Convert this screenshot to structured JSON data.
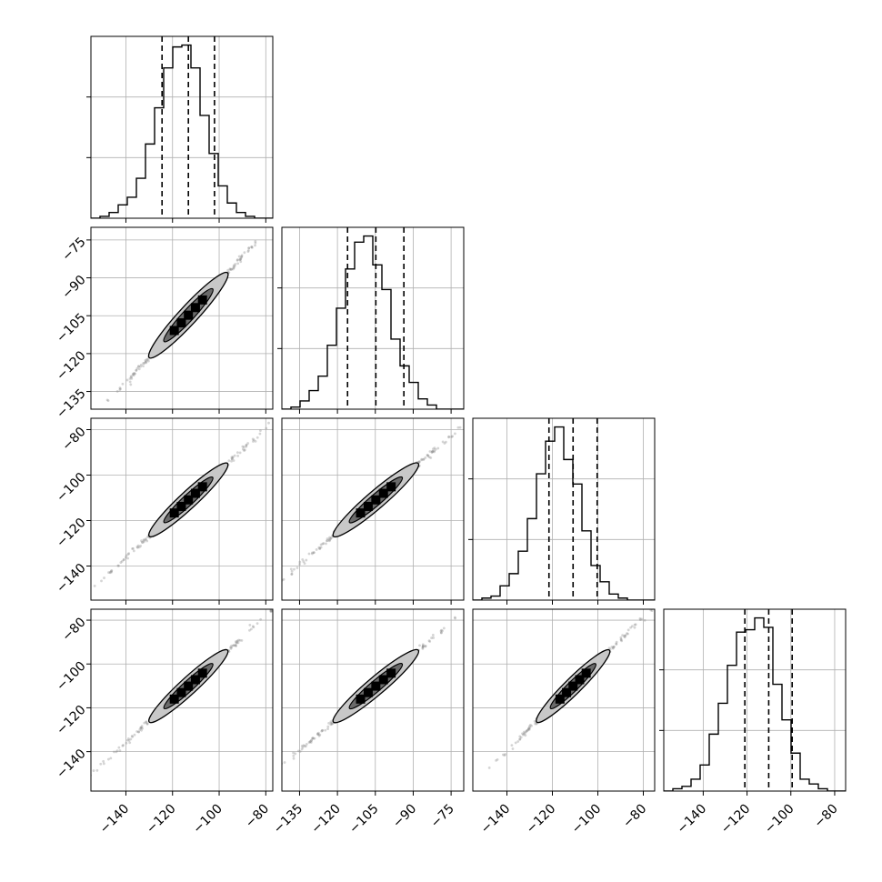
{
  "chart_data": {
    "type": "corner",
    "title": "",
    "grid": true,
    "parameter_labels": [
      "",
      "",
      "",
      ""
    ],
    "ranges": [
      [
        -155,
        -77
      ],
      [
        -142,
        -70
      ],
      [
        -155,
        -75
      ],
      [
        -158,
        -75
      ]
    ],
    "ticks": [
      [
        -140,
        -120,
        -100,
        -80
      ],
      [
        -135,
        -120,
        -105,
        -90,
        -75
      ],
      [
        -140,
        -120,
        -100,
        -80
      ],
      [
        -140,
        -120,
        -100,
        -80
      ]
    ],
    "quantiles": [
      [
        -124.5,
        -113.2,
        -102.0
      ],
      [
        -116.0,
        -104.8,
        -93.7
      ],
      [
        -121.5,
        -110.9,
        -100.3
      ],
      [
        -121.0,
        -110.1,
        -99.4
      ]
    ],
    "histograms": [
      {
        "bin_start": -155,
        "bin_width": 3.9,
        "counts": [
          0,
          1,
          3,
          7,
          11,
          21,
          39,
          58,
          79,
          90,
          91,
          79,
          54,
          34,
          17,
          8,
          3,
          1,
          0,
          0
        ]
      },
      {
        "bin_start": -142,
        "bin_width": 3.6,
        "counts": [
          0,
          1,
          4,
          9,
          16,
          31,
          49,
          68,
          81,
          84,
          70,
          58,
          34,
          21,
          13,
          5,
          2,
          0,
          0,
          0
        ]
      },
      {
        "bin_start": -155,
        "bin_width": 4.0,
        "counts": [
          0,
          1,
          2,
          7,
          13,
          24,
          40,
          62,
          78,
          85,
          69,
          57,
          34,
          17,
          9,
          3,
          1,
          0,
          0,
          0
        ]
      },
      {
        "bin_start": -158,
        "bin_width": 4.15,
        "counts": [
          0,
          1,
          2,
          5,
          11,
          24,
          37,
          53,
          67,
          68,
          73,
          69,
          45,
          30,
          16,
          5,
          3,
          1,
          0,
          0
        ]
      }
    ],
    "correlation": 0.99,
    "center": [
      -113.2,
      -104.8,
      -110.9,
      -110.1
    ],
    "std": [
      8.4,
      8.4,
      8.0,
      8.2
    ]
  }
}
